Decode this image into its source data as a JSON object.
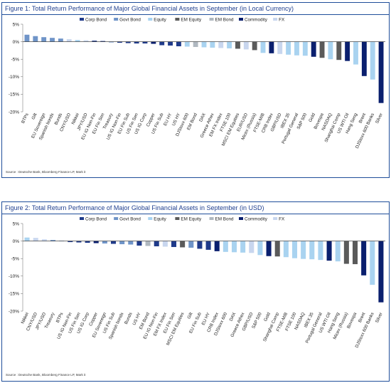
{
  "colors": {
    "Corp Bond": "#1f3a8a",
    "Govt Bond": "#6f94c8",
    "Equity": "#a9d3f0",
    "EM Equity": "#5a5a5a",
    "EM Bond": "#b0b8c0",
    "Commodity": "#0a1f6e",
    "FX": "#c8d6ee"
  },
  "legend_order": [
    "Corp Bond",
    "Govt Bond",
    "Equity",
    "EM Equity",
    "EM Bond",
    "Commodity",
    "FX"
  ],
  "figures": [
    {
      "title": "Figure 1: Total Return Performance of Major Global Financial Assets in September (in Local Currency)",
      "source": "Source : Deutsche Bank, Bloomberg Finance LP, Mark it"
    },
    {
      "title": "Figure 2: Total Return Performance of Major Global Financial Assets in September (in USD)",
      "source": "Source : Deutsche Bank, Bloomberg Finance LP, Mark it"
    }
  ],
  "chart_data": [
    {
      "type": "bar",
      "title": "Figure 1: Total Return Performance of Major Global Financial Assets in September (in Local Currency)",
      "ylim": [
        -20,
        5
      ],
      "yticks": [
        5,
        0,
        -5,
        -10,
        -15,
        -20
      ],
      "ytick_labels": [
        "5%",
        "0%",
        "-5%",
        "-10%",
        "-15%",
        "-20%"
      ],
      "legend": "top",
      "categories": [
        "BTPs",
        "Gilt",
        "EU Sovereign",
        "Spanish bonds",
        "Bunds",
        "CNY/USD",
        "Nikkei",
        "JPY/USD",
        "EU IG Non-Fin",
        "EU Fin Sen",
        "Treasury",
        "US IG Non-Fin",
        "EU Fin Sub",
        "US Fin Sen",
        "US IG Corp",
        "Copper",
        "US Fin Sub",
        "EU HY",
        "US HY",
        "DJStoxx 600",
        "EM Bond",
        "DAX",
        "Greece Athex",
        "EM FX Index",
        "FTSE 100",
        "MSCI EM Equities",
        "EUR/USD",
        "Micex (Russia)",
        "FTSE-MIB",
        "CRB Index",
        "GBP/USD",
        "IBEX 35",
        "Portugal General",
        "S&P 500",
        "Gold",
        "Bovespa",
        "NASDAQ",
        "Shanghai Comp",
        "US WTI Oil",
        "Hang Seng",
        "Brent",
        "DJStoxx 600 Banks",
        "Silver"
      ],
      "values": [
        2.0,
        1.6,
        1.3,
        1.1,
        0.9,
        0.7,
        0.5,
        0.4,
        0.3,
        0.2,
        -0.2,
        -0.3,
        -0.4,
        -0.5,
        -0.5,
        -0.6,
        -1.0,
        -1.1,
        -1.3,
        -1.4,
        -1.5,
        -1.6,
        -1.7,
        -1.8,
        -1.9,
        -2.0,
        -2.2,
        -2.4,
        -3.2,
        -3.3,
        -3.5,
        -3.7,
        -3.9,
        -4.0,
        -4.3,
        -4.6,
        -5.0,
        -5.2,
        -5.5,
        -6.5,
        -9.8,
        -10.8,
        -17.5
      ],
      "classes": [
        "Govt Bond",
        "Govt Bond",
        "Govt Bond",
        "Govt Bond",
        "Govt Bond",
        "FX",
        "Equity",
        "FX",
        "Corp Bond",
        "Corp Bond",
        "Govt Bond",
        "Corp Bond",
        "Corp Bond",
        "Corp Bond",
        "Corp Bond",
        "Commodity",
        "Corp Bond",
        "Corp Bond",
        "Corp Bond",
        "Equity",
        "EM Bond",
        "Equity",
        "Equity",
        "FX",
        "Equity",
        "EM Equity",
        "FX",
        "EM Equity",
        "Equity",
        "Commodity",
        "FX",
        "Equity",
        "Equity",
        "Equity",
        "Commodity",
        "EM Equity",
        "Equity",
        "EM Equity",
        "Commodity",
        "Equity",
        "Commodity",
        "Equity",
        "Commodity"
      ]
    },
    {
      "type": "bar",
      "title": "Figure 2: Total Return Performance of Major Global Financial Assets in September (in USD)",
      "ylim": [
        -20,
        5
      ],
      "yticks": [
        5,
        0,
        -5,
        -10,
        -15,
        -20
      ],
      "ytick_labels": [
        "5%",
        "0%",
        "-5%",
        "-10%",
        "-15%",
        "-20%"
      ],
      "legend": "top",
      "categories": [
        "Nikkei",
        "CNY/USD",
        "JPY/USD",
        "Treasury",
        "BTPs",
        "US IG Non-Fin",
        "US Fin Sen",
        "US IG Corp",
        "Copper",
        "EU Sovereign",
        "US Fin Sub",
        "Spanish bonds",
        "Bunds",
        "US HY",
        "EM Bond",
        "EU IG Non-Fin",
        "EM FX Index",
        "EU Fin Sen",
        "MSCI EM Equities",
        "Gilt",
        "EU Fin Sub",
        "EU HY",
        "CRB Index",
        "DJStoxx 600",
        "DAX",
        "Greece Athex",
        "GBP/USD",
        "S&P 500",
        "Gold",
        "Shanghai Comp",
        "FTSE-MIB",
        "FTSE 100",
        "NASDAQ",
        "IBEX 35",
        "Portugal General",
        "US WTI Oil",
        "Hang Seng",
        "Micex (Russia)",
        "Bovespa",
        "Brent",
        "DJStoxx 600 Banks",
        "Silver"
      ],
      "values": [
        1.0,
        0.9,
        0.5,
        0.3,
        0.1,
        -0.3,
        -0.4,
        -0.5,
        -0.6,
        -0.7,
        -0.8,
        -0.9,
        -1.0,
        -1.3,
        -1.4,
        -1.5,
        -1.6,
        -1.7,
        -1.8,
        -1.9,
        -2.2,
        -2.5,
        -2.9,
        -3.1,
        -3.2,
        -3.3,
        -3.4,
        -4.0,
        -4.3,
        -4.4,
        -4.6,
        -4.9,
        -5.1,
        -5.2,
        -5.4,
        -5.6,
        -5.8,
        -6.5,
        -6.6,
        -9.8,
        -12.5,
        -17.5
      ],
      "classes": [
        "Equity",
        "FX",
        "FX",
        "Govt Bond",
        "Govt Bond",
        "Corp Bond",
        "Corp Bond",
        "Corp Bond",
        "Commodity",
        "Govt Bond",
        "Corp Bond",
        "Govt Bond",
        "Govt Bond",
        "Corp Bond",
        "EM Bond",
        "Corp Bond",
        "FX",
        "Corp Bond",
        "EM Equity",
        "Govt Bond",
        "Corp Bond",
        "Corp Bond",
        "Commodity",
        "Equity",
        "Equity",
        "Equity",
        "FX",
        "Equity",
        "Commodity",
        "EM Equity",
        "Equity",
        "Equity",
        "Equity",
        "Equity",
        "Equity",
        "Commodity",
        "Equity",
        "EM Equity",
        "EM Equity",
        "Commodity",
        "Equity",
        "Commodity"
      ]
    }
  ]
}
